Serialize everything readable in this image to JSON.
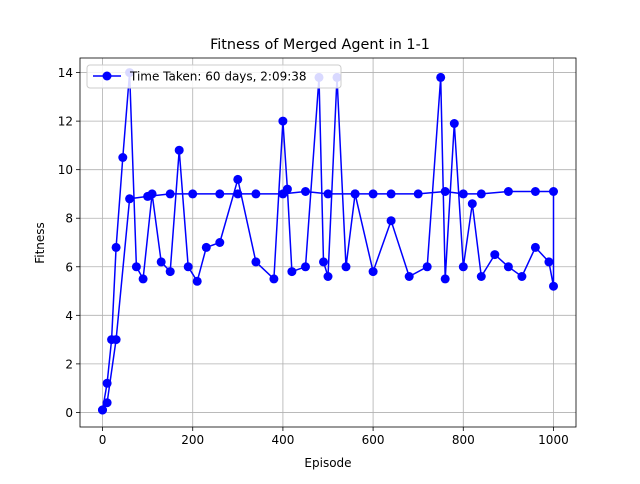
{
  "chart_data": {
    "type": "line",
    "title": "Fitness of Merged Agent in 1-1",
    "xlabel": "Episode",
    "ylabel": "Fitness",
    "xlim": [
      -50,
      1050
    ],
    "ylim": [
      -0.6,
      14.6
    ],
    "xticks": [
      0,
      200,
      400,
      600,
      800,
      1000
    ],
    "yticks": [
      0,
      2,
      4,
      6,
      8,
      10,
      12,
      14
    ],
    "grid": true,
    "legend": {
      "placement": "top-left"
    },
    "series": [
      {
        "name": "Time Taken: 60 days, 2:09:38",
        "color": "#0000ff",
        "marker": "circle",
        "x": [
          0,
          10,
          20,
          30,
          45,
          60,
          75,
          90,
          110,
          130,
          150,
          170,
          190,
          210,
          230,
          260,
          300,
          340,
          380,
          400,
          410,
          420,
          450,
          480,
          490,
          500,
          520,
          540,
          560,
          600,
          640,
          680,
          720,
          750,
          760,
          780,
          800,
          820,
          840,
          870,
          900,
          930,
          960,
          990,
          1000,
          1000,
          960,
          900,
          840,
          800,
          760,
          700,
          640,
          600,
          560,
          500,
          450,
          400,
          340,
          300,
          260,
          200,
          150,
          100,
          60,
          30,
          10,
          0
        ],
        "y": [
          0.1,
          1.2,
          3.0,
          6.8,
          10.5,
          14.0,
          6.0,
          5.5,
          9.0,
          6.2,
          5.8,
          10.8,
          6.0,
          5.4,
          6.8,
          7.0,
          9.6,
          6.2,
          5.5,
          12.0,
          9.2,
          5.8,
          6.0,
          13.8,
          6.2,
          5.6,
          13.8,
          6.0,
          9.0,
          5.8,
          7.9,
          5.6,
          6.0,
          13.8,
          5.5,
          11.9,
          6.0,
          8.6,
          5.6,
          6.5,
          6.0,
          5.6,
          6.8,
          6.2,
          5.2,
          9.1,
          9.1,
          9.1,
          9.0,
          9.0,
          9.1,
          9.0,
          9.0,
          9.0,
          9.0,
          9.0,
          9.1,
          9.0,
          9.0,
          9.0,
          9.0,
          9.0,
          9.0,
          8.9,
          8.8,
          3.0,
          0.4,
          0.1
        ]
      }
    ]
  }
}
